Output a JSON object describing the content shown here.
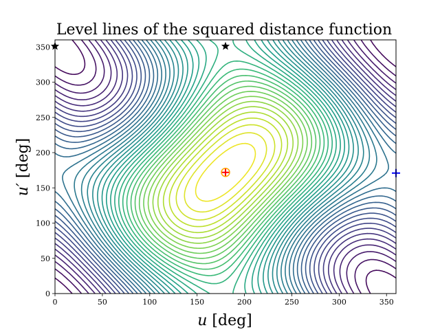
{
  "chart_data": {
    "type": "contour",
    "title": "Level lines of the squared distance function",
    "xlabel_var": "u",
    "xlabel_unit": " [deg]",
    "ylabel_var": "u′",
    "ylabel_unit": " [deg]",
    "xlim": [
      0,
      360
    ],
    "ylim": [
      0,
      360
    ],
    "xticks": [
      0,
      50,
      100,
      150,
      200,
      250,
      300,
      350
    ],
    "yticks": [
      0,
      50,
      100,
      150,
      200,
      250,
      300,
      350
    ],
    "colormap": "viridis",
    "grid": false,
    "markers": [
      {
        "name": "minimum-red-plus",
        "shape": "plus",
        "color": "#ff0000",
        "x": 180,
        "y": 172
      },
      {
        "name": "minimum-orange-circle",
        "shape": "circle",
        "color": "#ffa500",
        "x": 180,
        "y": 172
      },
      {
        "name": "blue-plus",
        "shape": "plus",
        "color": "#0000ff",
        "x": 360,
        "y": 171
      },
      {
        "name": "star-top-left",
        "shape": "star",
        "color": "#000000",
        "x": 0,
        "y": 351
      },
      {
        "name": "star-top-center",
        "shape": "star",
        "color": "#000000",
        "x": 180,
        "y": 351
      }
    ]
  }
}
